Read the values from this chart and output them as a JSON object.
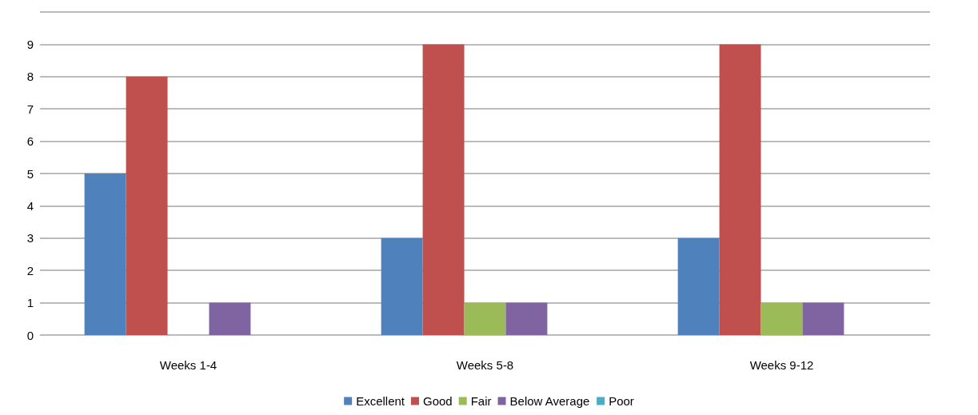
{
  "chart_data": {
    "type": "bar",
    "categories": [
      "Weeks 1-4",
      "Weeks 5-8",
      "Weeks 9-12"
    ],
    "series": [
      {
        "name": "Excellent",
        "color": "#4f81bd",
        "values": [
          5,
          3,
          3
        ]
      },
      {
        "name": "Good",
        "color": "#c0504d",
        "values": [
          8,
          9,
          9
        ]
      },
      {
        "name": "Fair",
        "color": "#9bbb59",
        "values": [
          0,
          1,
          1
        ]
      },
      {
        "name": "Below Average",
        "color": "#8064a2",
        "values": [
          1,
          1,
          1
        ]
      },
      {
        "name": "Poor",
        "color": "#4bacc6",
        "values": [
          0,
          0,
          0
        ]
      }
    ],
    "ylim": [
      0,
      10
    ],
    "yticks": [
      0,
      1,
      2,
      3,
      4,
      5,
      6,
      7,
      8,
      9,
      {
        "value": 10,
        "label": null
      }
    ],
    "grid": "y",
    "legend": "bottom"
  }
}
